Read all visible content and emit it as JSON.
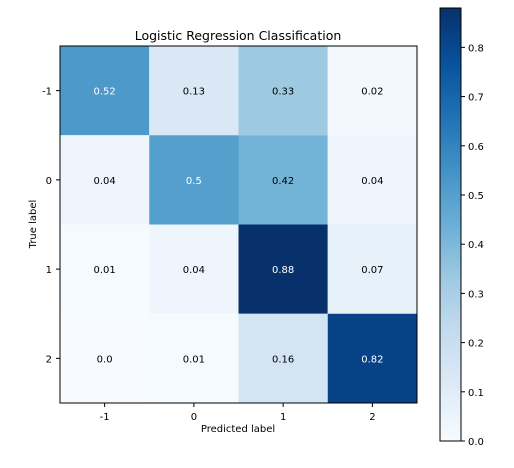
{
  "chart_data": {
    "type": "heatmap",
    "title": "Logistic Regression Classification",
    "xlabel": "Predicted label",
    "ylabel": "True label",
    "x_categories": [
      "-1",
      "0",
      "1",
      "2"
    ],
    "y_categories": [
      "-1",
      "0",
      "1",
      "2"
    ],
    "values": [
      [
        0.52,
        0.13,
        0.33,
        0.02
      ],
      [
        0.04,
        0.5,
        0.42,
        0.04
      ],
      [
        0.01,
        0.04,
        0.88,
        0.07
      ],
      [
        0.0,
        0.01,
        0.16,
        0.82
      ]
    ],
    "value_labels": [
      [
        "0.52",
        "0.13",
        "0.33",
        "0.02"
      ],
      [
        "0.04",
        "0.5",
        "0.42",
        "0.04"
      ],
      [
        "0.01",
        "0.04",
        "0.88",
        "0.07"
      ],
      [
        "0.0",
        "0.01",
        "0.16",
        "0.82"
      ]
    ],
    "colormap": "Blues",
    "color_range": [
      0.0,
      0.88
    ],
    "colorbar": {
      "ticks": [
        0.0,
        0.1,
        0.2,
        0.3,
        0.4,
        0.5,
        0.6,
        0.7,
        0.8
      ],
      "tick_labels": [
        "0.0",
        "0.1",
        "0.2",
        "0.3",
        "0.4",
        "0.5",
        "0.6",
        "0.7",
        "0.8"
      ]
    },
    "grid": false
  }
}
